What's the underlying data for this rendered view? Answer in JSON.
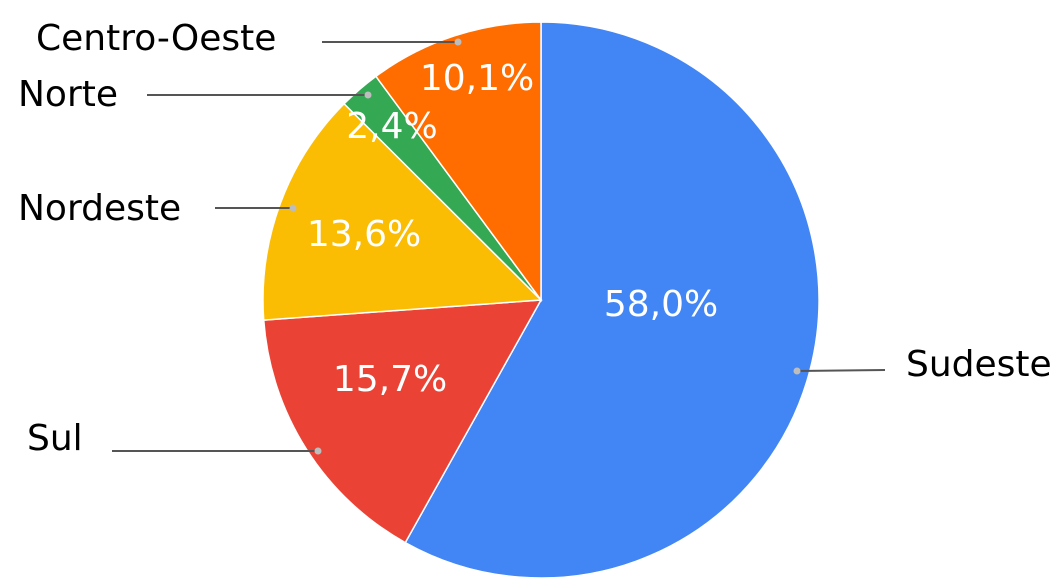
{
  "chart_data": {
    "type": "pie",
    "title": "",
    "slices": [
      {
        "label": "Sudeste",
        "value": 58.0,
        "value_label": "58,0%",
        "color": "#4285F4"
      },
      {
        "label": "Sul",
        "value": 15.7,
        "value_label": "15,7%",
        "color": "#EA4335"
      },
      {
        "label": "Nordeste",
        "value": 13.6,
        "value_label": "13,6%",
        "color": "#FBBC04"
      },
      {
        "label": "Norte",
        "value": 2.4,
        "value_label": "2,4%",
        "color": "#34A853"
      },
      {
        "label": "Centro-Oeste",
        "value": 10.1,
        "value_label": "10,1%",
        "color": "#FF6D01"
      }
    ],
    "legend": "none",
    "labels": "outside-with-leader-lines"
  }
}
